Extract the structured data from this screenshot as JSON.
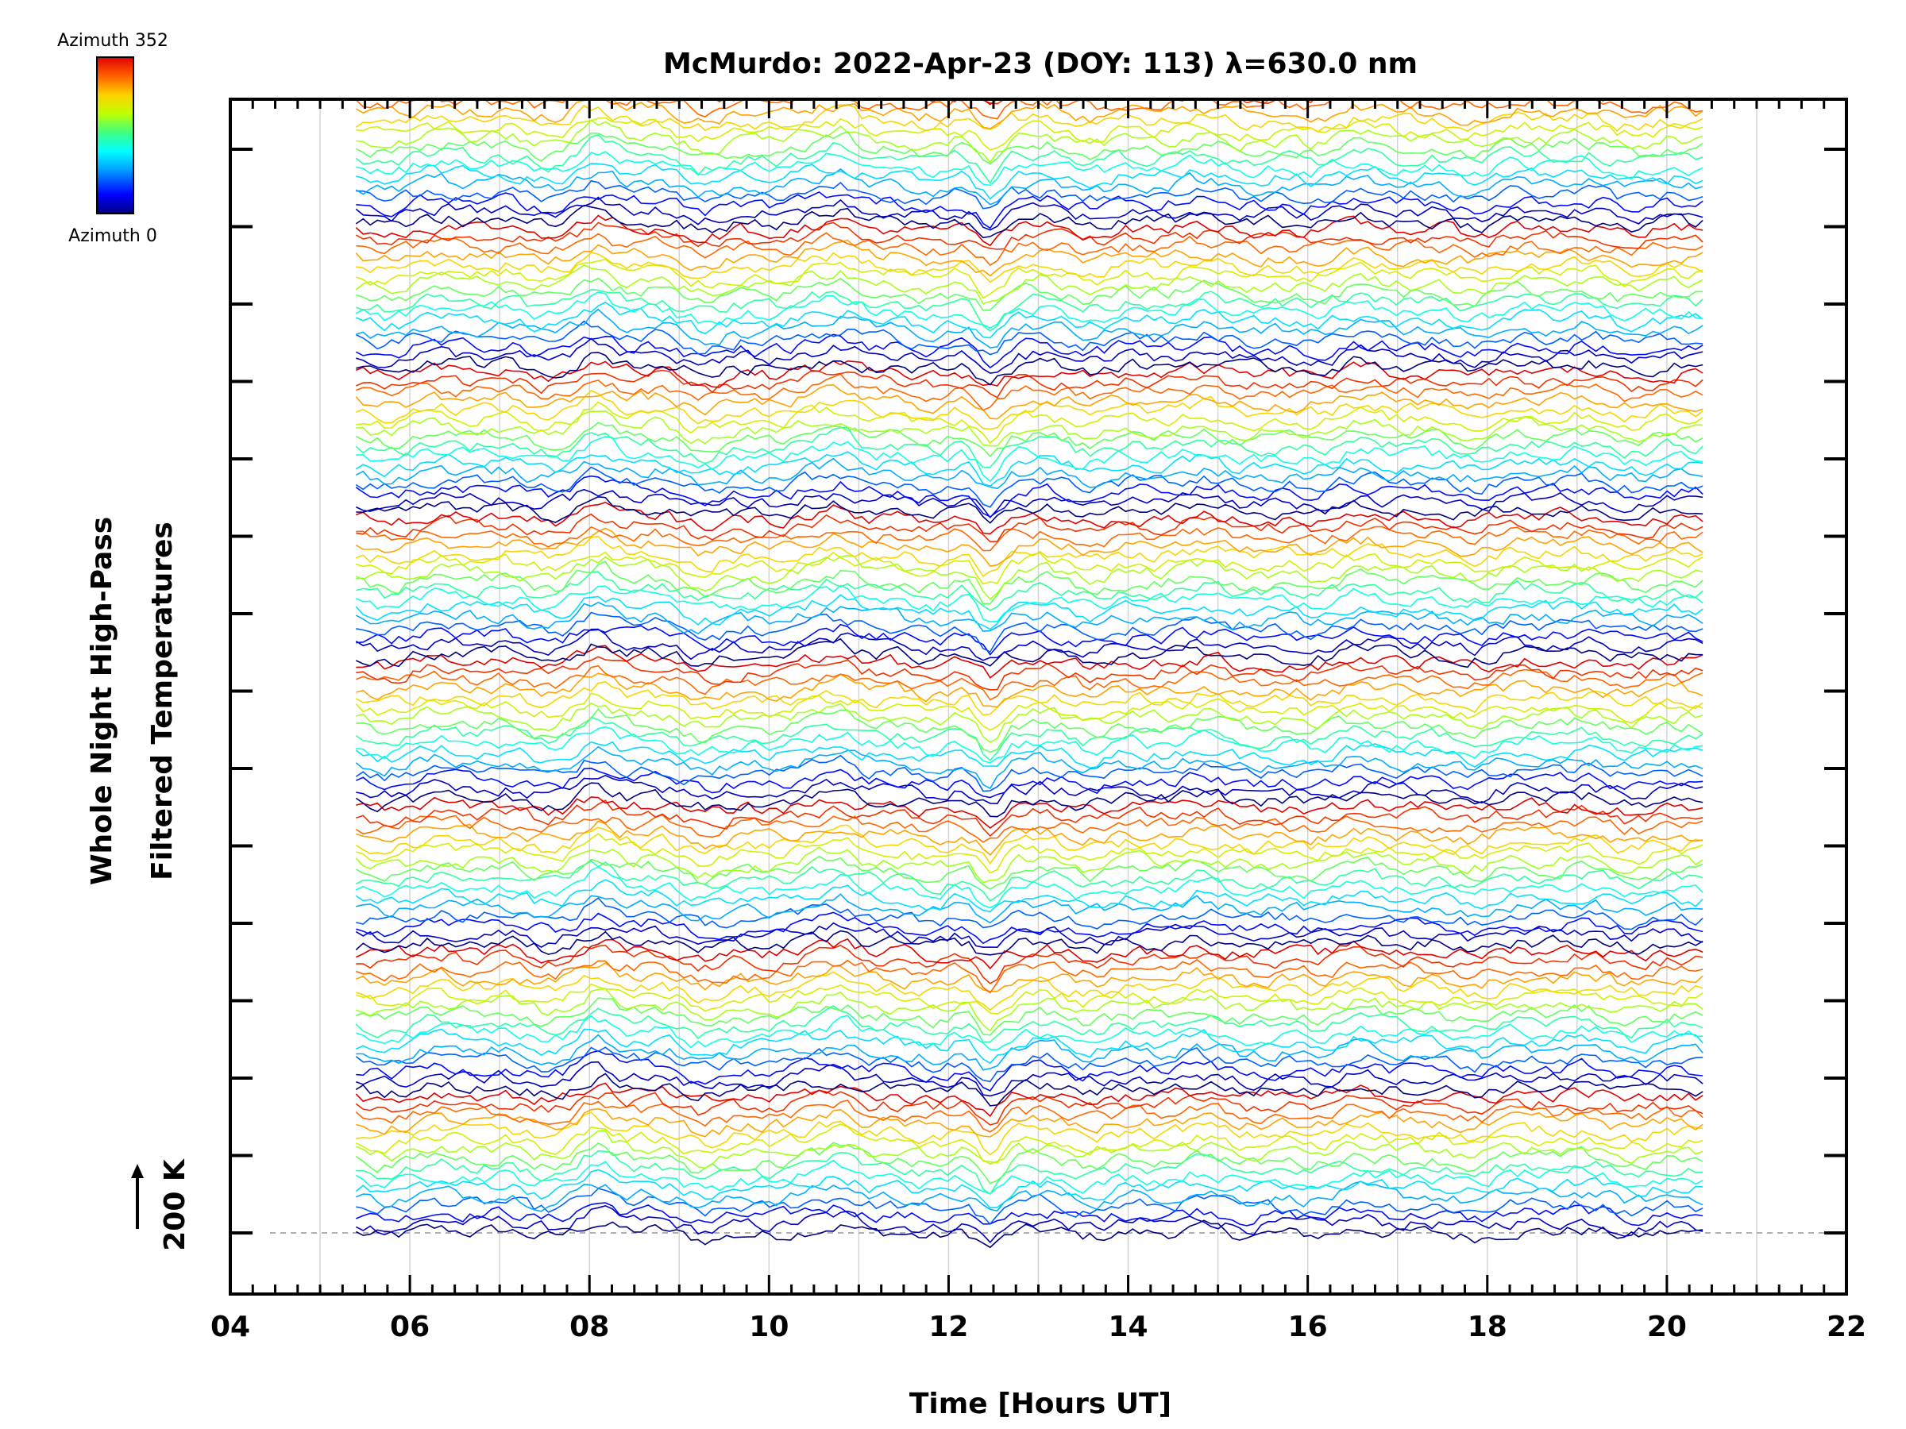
{
  "chart_data": {
    "type": "line",
    "title": "McMurdo: 2022-Apr-23 (DOY: 113) λ=630.0 nm",
    "xlabel": "Time [Hours UT]",
    "ylabel_line1": "Whole Night High-Pass",
    "ylabel_line2": "Filtered Temperatures",
    "xlim": [
      4,
      22
    ],
    "x_tick_labels": [
      "04",
      "06",
      "08",
      "10",
      "12",
      "14",
      "16",
      "18",
      "20",
      "22"
    ],
    "scale_marker_label": "200 K",
    "colorbar": {
      "top_label": "Azimuth 352",
      "bottom_label": "Azimuth 0",
      "colormap": [
        "#000080",
        "#0000ff",
        "#00a0ff",
        "#00ffff",
        "#40ff80",
        "#c0ff00",
        "#ffd000",
        "#ff6000",
        "#e00000"
      ]
    },
    "time_range_hours": [
      5.4,
      20.4
    ],
    "grid_vertical_every_hours": 1,
    "stacked_groups": 8,
    "traces_per_group": 16,
    "azimuth_range_deg": [
      0,
      352
    ],
    "baseline_dashed": true
  }
}
